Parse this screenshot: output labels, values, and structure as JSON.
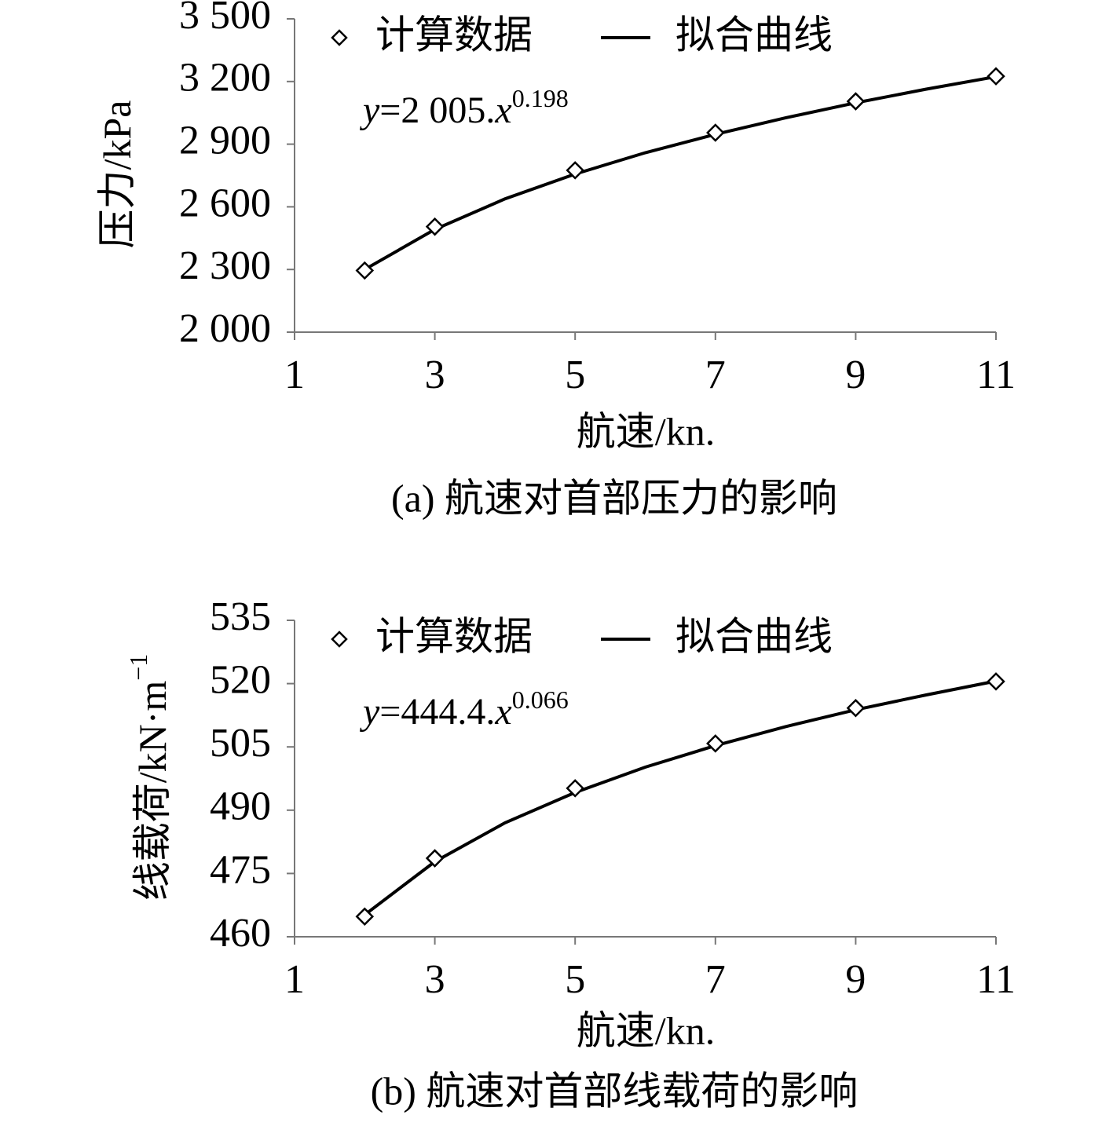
{
  "chart_data": [
    {
      "type": "scatter",
      "title": "(a) 航速对首部压力的影响",
      "xlabel": "航速/kn.",
      "ylabel": "压力/kPa",
      "equation": {
        "y": "y",
        "body": "=2 005.",
        "x": "x",
        "exponent": "0.198"
      },
      "xlim": [
        1,
        11
      ],
      "xticks": [
        1,
        3,
        5,
        7,
        9,
        11
      ],
      "ylim": [
        2000,
        3500
      ],
      "yticks": [
        {
          "value": 2000,
          "label": "2 000"
        },
        {
          "value": 2300,
          "label": "2 300"
        },
        {
          "value": 2600,
          "label": "2 600"
        },
        {
          "value": 2900,
          "label": "2 900"
        },
        {
          "value": 3200,
          "label": "3 200"
        },
        {
          "value": 3500,
          "label": "3 500"
        }
      ],
      "series": [
        {
          "name": "计算数据",
          "marker": "diamond",
          "color": "#000000",
          "x": [
            2,
            3,
            5,
            7,
            9,
            11
          ],
          "values": [
            2295,
            2505,
            2775,
            2955,
            3105,
            3225
          ]
        },
        {
          "name": "拟合曲线",
          "style": "line",
          "color": "#000000",
          "x": [
            2,
            3,
            4,
            5,
            6,
            7,
            8,
            9,
            10,
            11
          ],
          "values": [
            2300,
            2492,
            2638,
            2757,
            2859,
            2947,
            3026,
            3098,
            3163,
            3223
          ]
        }
      ]
    },
    {
      "type": "scatter",
      "title": "(b) 航速对首部线载荷的影响",
      "xlabel": "航速/kn.",
      "ylabel": "线载荷/kN·m",
      "ylabel_exponent": "−1",
      "equation": {
        "y": "y",
        "body": "=444.4.",
        "x": "x",
        "exponent": "0.066"
      },
      "xlim": [
        1,
        11
      ],
      "xticks": [
        1,
        3,
        5,
        7,
        9,
        11
      ],
      "ylim": [
        460,
        535
      ],
      "yticks": [
        460,
        475,
        490,
        505,
        520,
        535
      ],
      "series": [
        {
          "name": "计算数据",
          "marker": "diamond",
          "color": "#000000",
          "x": [
            2,
            3,
            5,
            7,
            9,
            11
          ],
          "values": [
            464.8,
            478.6,
            495.2,
            505.8,
            514.2,
            520.5
          ]
        },
        {
          "name": "拟合曲线",
          "style": "line",
          "color": "#000000",
          "x": [
            2,
            3,
            4,
            5,
            6,
            7,
            8,
            9,
            10,
            11
          ],
          "values": [
            465.2,
            477.8,
            487.0,
            494.2,
            500.2,
            505.3,
            509.8,
            513.8,
            517.3,
            520.6
          ]
        }
      ]
    }
  ]
}
